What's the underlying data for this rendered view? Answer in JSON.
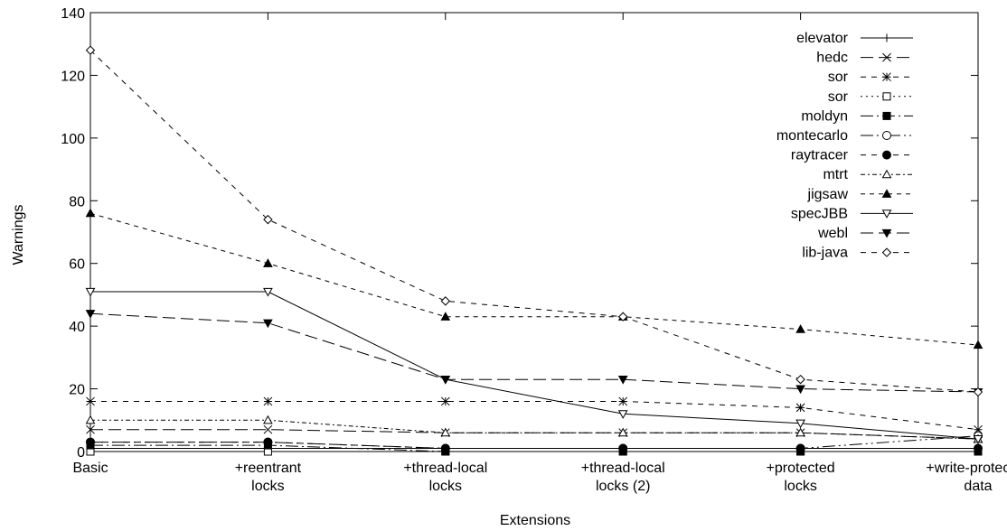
{
  "chart_data": {
    "type": "line",
    "xlabel": "Extensions",
    "ylabel": "Warnings",
    "ylim": [
      0,
      140
    ],
    "yticks": [
      0,
      20,
      40,
      60,
      80,
      100,
      120,
      140
    ],
    "grid": false,
    "legend_position": "top-right",
    "categories": [
      [
        "Basic"
      ],
      [
        "+reentrant",
        "locks"
      ],
      [
        "+thread-local",
        "locks"
      ],
      [
        "+thread-local",
        "locks (2)"
      ],
      [
        "+protected",
        "locks"
      ],
      [
        "+write-protected",
        "data"
      ]
    ],
    "series": [
      {
        "name": "elevator",
        "values": [
          1,
          1,
          1,
          1,
          1,
          1
        ],
        "marker": "plus",
        "dash": ""
      },
      {
        "name": "hedc",
        "values": [
          7,
          7,
          6,
          6,
          6,
          4
        ],
        "marker": "cross",
        "dash": "14,6"
      },
      {
        "name": "sor",
        "values": [
          16,
          16,
          16,
          16,
          14,
          7
        ],
        "marker": "star",
        "dash": "6,6"
      },
      {
        "name": "sor",
        "values": [
          0,
          0,
          0,
          0,
          0,
          0
        ],
        "marker": "square-open",
        "dash": "2,4"
      },
      {
        "name": "moldyn",
        "values": [
          2,
          2,
          0,
          0,
          0,
          0
        ],
        "marker": "square-filled",
        "dash": "14,4,2,4"
      },
      {
        "name": "montecarlo",
        "values": [
          3,
          3,
          1,
          1,
          1,
          5
        ],
        "marker": "circle-open",
        "dash": "14,4,2,4,2,4"
      },
      {
        "name": "raytracer",
        "values": [
          3,
          3,
          1,
          1,
          1,
          1
        ],
        "marker": "circle-filled",
        "dash": "6,6"
      },
      {
        "name": "mtrt",
        "values": [
          10,
          10,
          6,
          6,
          6,
          4
        ],
        "marker": "triangle-open",
        "dash": "5,3,2,3"
      },
      {
        "name": "jigsaw",
        "values": [
          76,
          60,
          43,
          43,
          39,
          34
        ],
        "marker": "triangle-filled",
        "dash": "5,5"
      },
      {
        "name": "specJBB",
        "values": [
          51,
          51,
          23,
          12,
          9,
          4
        ],
        "marker": "tri-down-open",
        "dash": ""
      },
      {
        "name": "webl",
        "values": [
          44,
          41,
          23,
          23,
          20,
          19
        ],
        "marker": "tri-down-filled",
        "dash": "14,6"
      },
      {
        "name": "lib-java",
        "values": [
          128,
          74,
          48,
          43,
          23,
          19
        ],
        "marker": "diamond-open",
        "dash": "6,6"
      }
    ]
  }
}
